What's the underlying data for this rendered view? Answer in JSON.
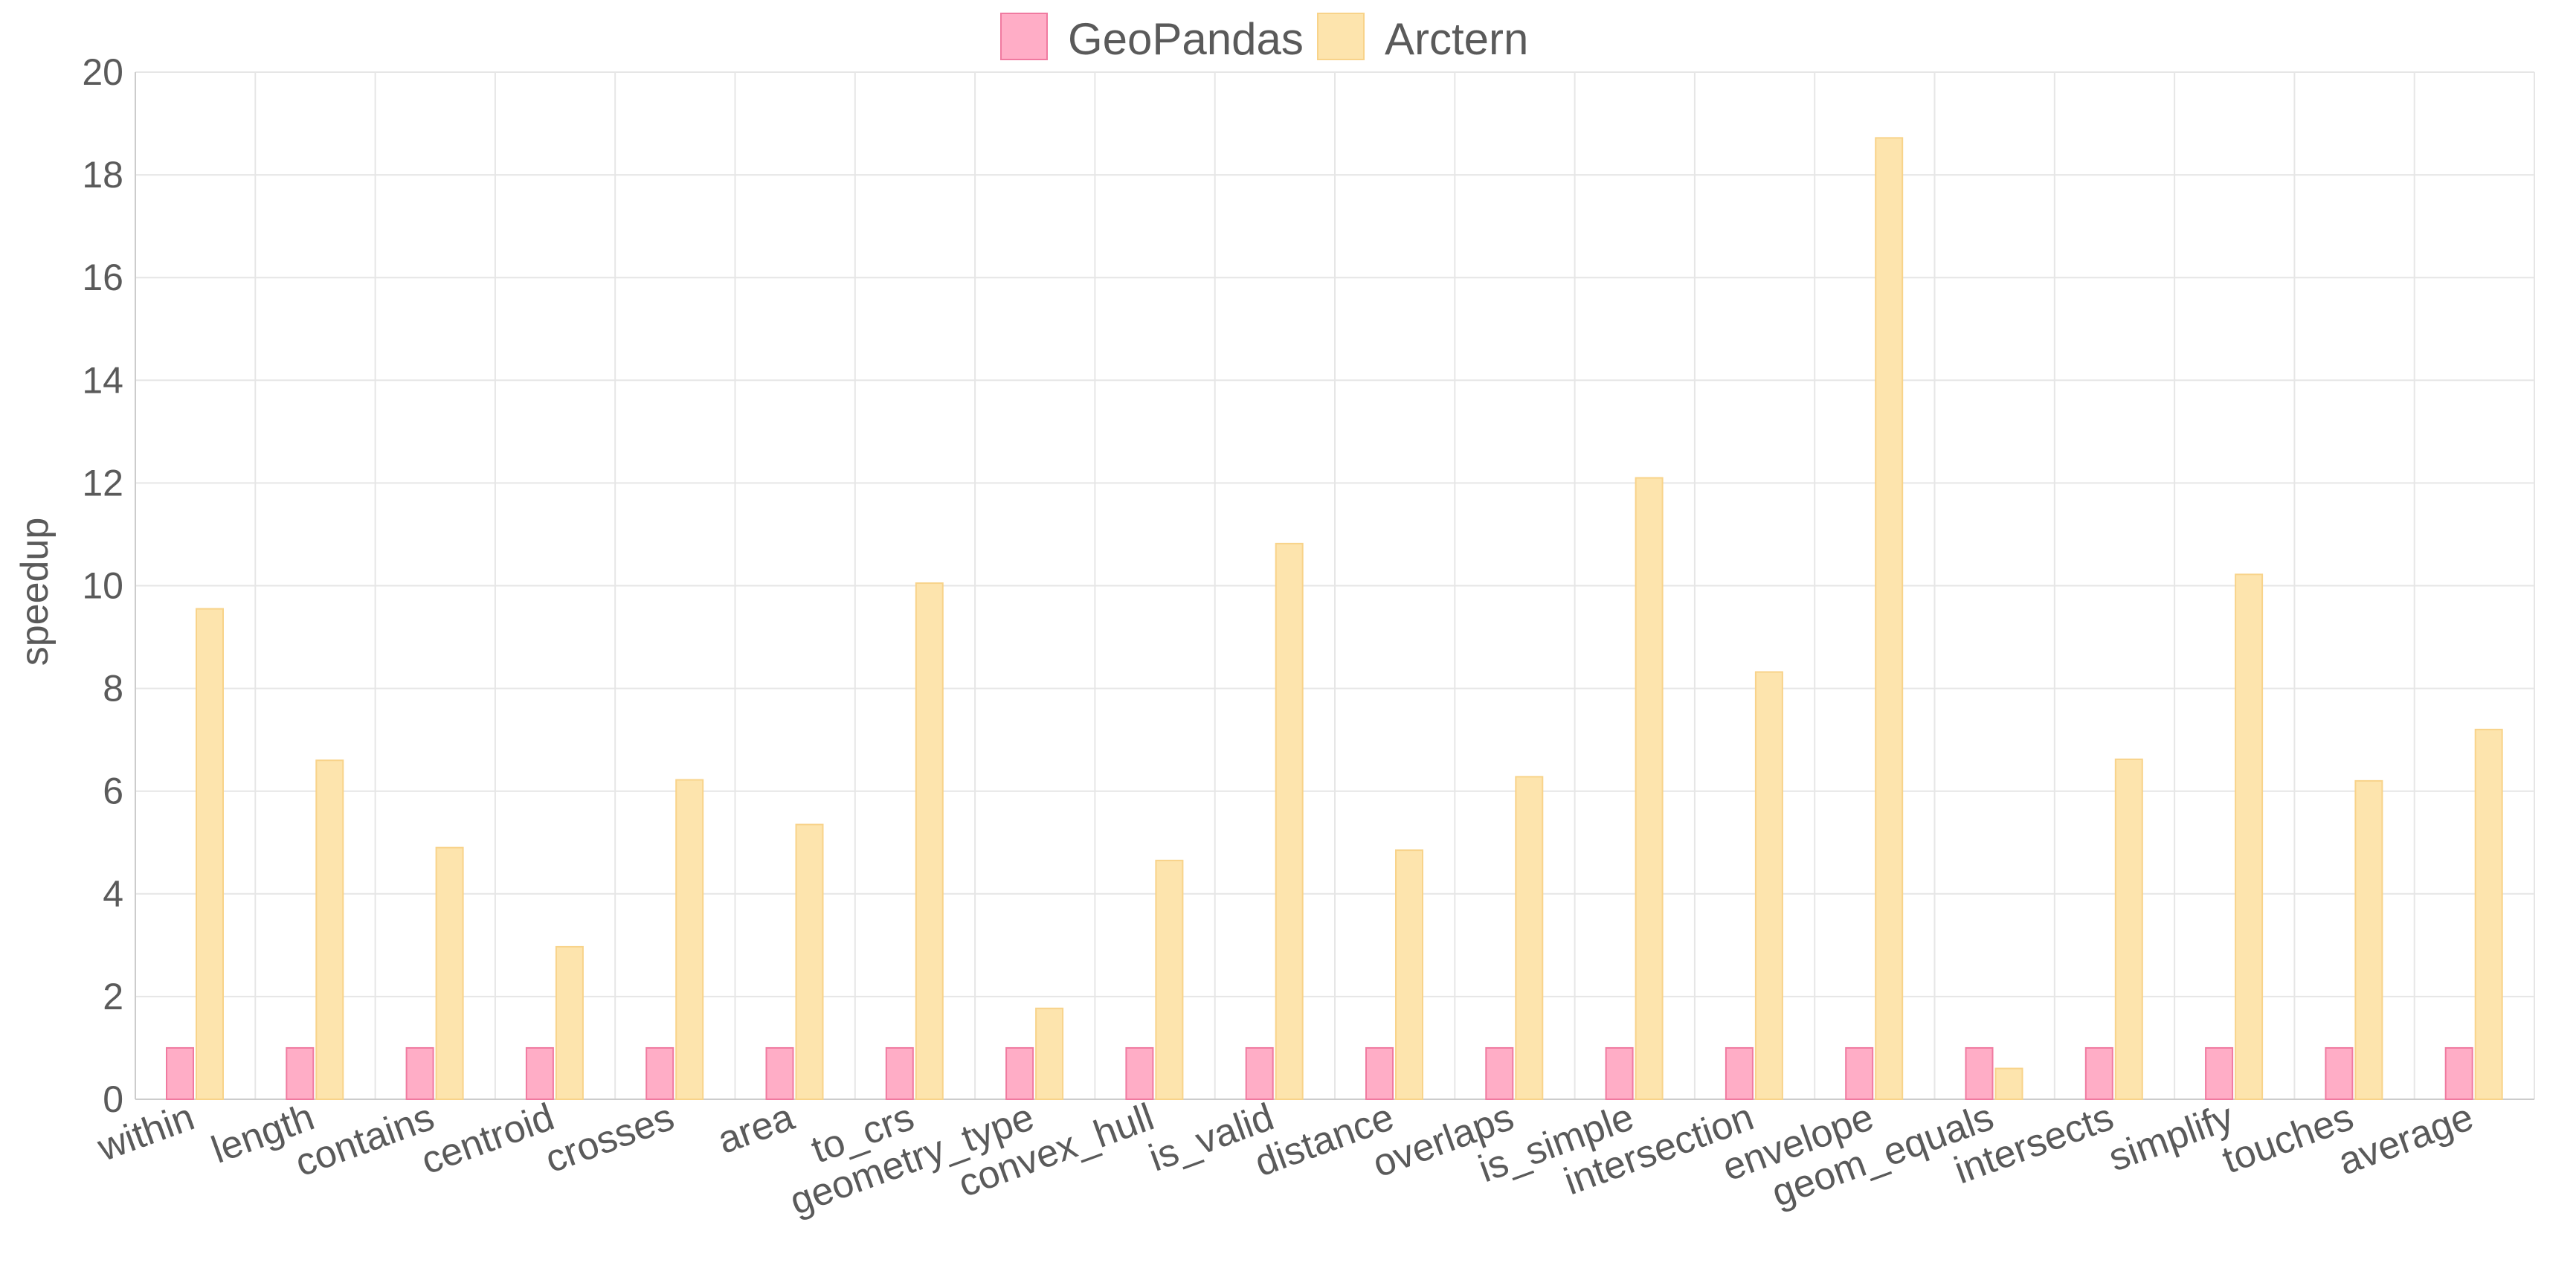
{
  "chart_data": {
    "type": "bar",
    "title": "",
    "xlabel": "",
    "ylabel": "speedup",
    "ylim": [
      0,
      20
    ],
    "yticks": [
      0,
      2,
      4,
      6,
      8,
      10,
      12,
      14,
      16,
      18,
      20
    ],
    "grid": true,
    "legend": "top-center",
    "categories": [
      "within",
      "length",
      "contains",
      "centroid",
      "crosses",
      "area",
      "to_crs",
      "geometry_type",
      "convex_hull",
      "is_valid",
      "distance",
      "overlaps",
      "is_simple",
      "intersection",
      "envelope",
      "geom_equals",
      "intersects",
      "simplify",
      "touches",
      "average"
    ],
    "series": [
      {
        "name": "GeoPandas",
        "color": "#ffadc6",
        "stroke": "#f07aa0",
        "values": [
          1,
          1,
          1,
          1,
          1,
          1,
          1,
          1,
          1,
          1,
          1,
          1,
          1,
          1,
          1,
          1,
          1,
          1,
          1,
          1
        ]
      },
      {
        "name": "Arctern",
        "color": "#fde4ad",
        "stroke": "#f8d38a",
        "values": [
          9.55,
          6.6,
          4.9,
          2.97,
          6.22,
          5.35,
          10.05,
          1.77,
          4.65,
          10.82,
          4.85,
          6.28,
          12.1,
          8.32,
          18.72,
          0.6,
          6.62,
          10.22,
          6.2,
          7.2
        ]
      }
    ]
  }
}
